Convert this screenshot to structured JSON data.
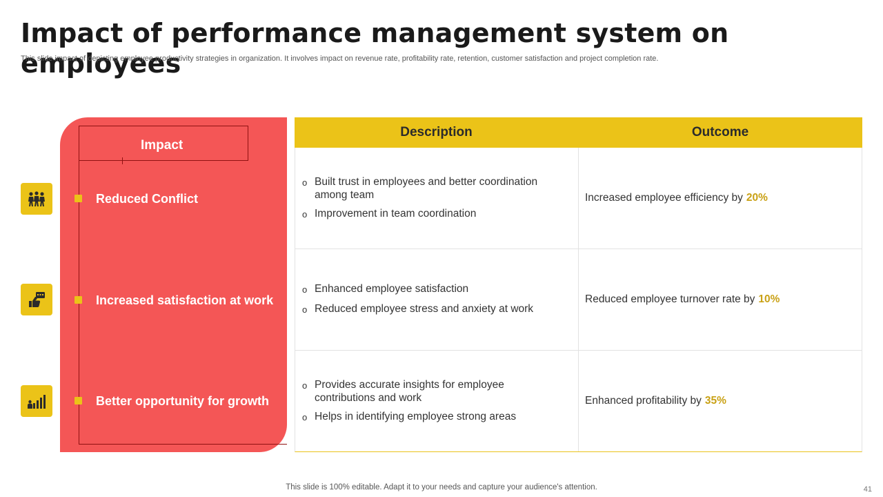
{
  "slide": {
    "title": "Impact of performance management system on employees",
    "subtitle": "This slide impact of depicting employee productivity strategies in organization. It involves impact on revenue rate,  profitability rate,  retention, customer satisfaction and project completion rate.",
    "footer": "This slide is 100% editable. Adapt it to your needs and capture your audience's attention.",
    "page_number": "41"
  },
  "impact": {
    "heading": "Impact",
    "items": [
      {
        "label": "Reduced Conflict",
        "icon": "teamwork-people-icon"
      },
      {
        "label": "Increased satisfaction at work",
        "icon": "thumbs-up-chat-icon"
      },
      {
        "label": "Better opportunity for growth",
        "icon": "growth-chart-icon"
      }
    ]
  },
  "table": {
    "headers": {
      "description": "Description",
      "outcome": "Outcome"
    },
    "rows": [
      {
        "description": [
          "Built trust in employees and better coordination among team",
          "Improvement  in team coordination"
        ],
        "outcome_text": "Increased employee efficiency by",
        "outcome_value": "20%"
      },
      {
        "description": [
          "Enhanced employee satisfaction",
          "Reduced employee stress and anxiety at work"
        ],
        "outcome_text": "Reduced employee turnover  rate by",
        "outcome_value": "10%"
      },
      {
        "description": [
          "Provides accurate insights for employee contributions and work",
          "Helps in identifying employee strong areas"
        ],
        "outcome_text": "Enhanced profitability by",
        "outcome_value": "35%"
      }
    ]
  },
  "colors": {
    "accent_yellow": "#ebc318",
    "panel_red": "#f45656",
    "highlight_gold": "#c9a115"
  }
}
